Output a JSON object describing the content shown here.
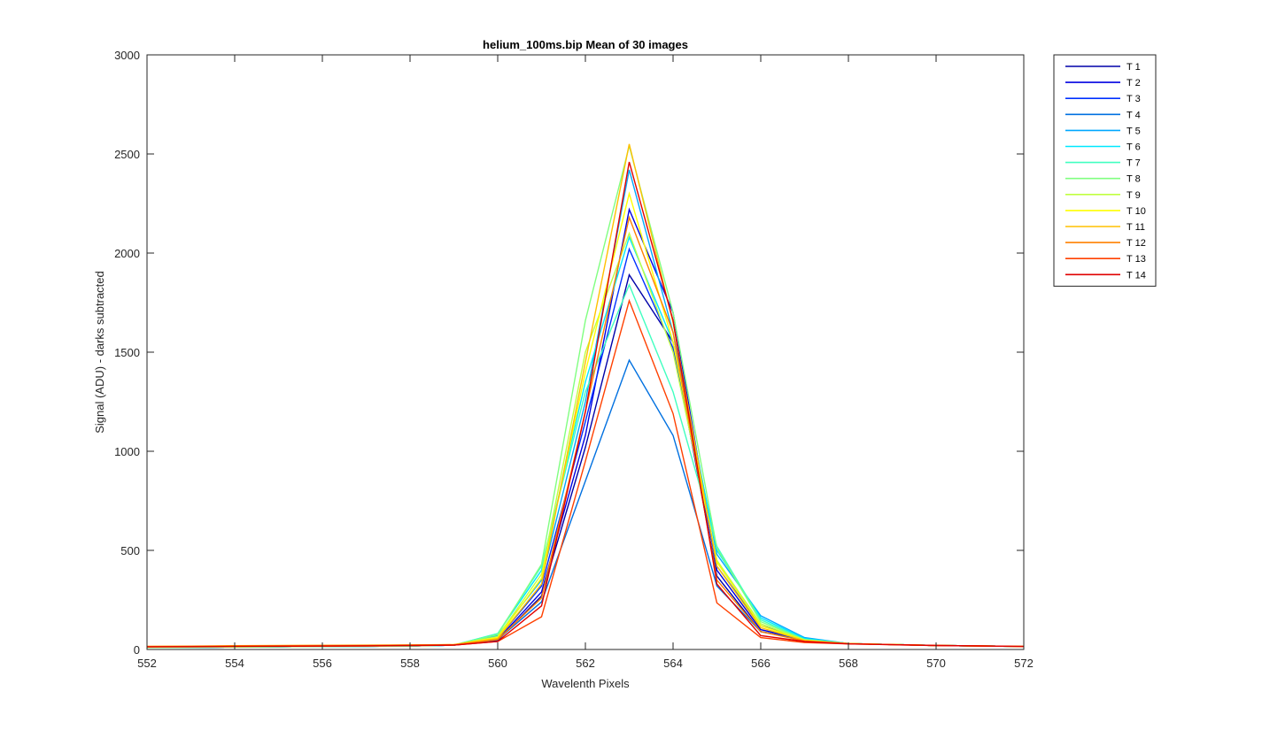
{
  "chart_data": {
    "type": "line",
    "title": "helium_100ms.bip  Mean of 30 images",
    "xlabel": "Wavelenth Pixels",
    "ylabel": "Signal (ADU) - darks subtracted",
    "xlim": [
      552,
      572
    ],
    "ylim": [
      0,
      3000
    ],
    "xticks": [
      552,
      554,
      556,
      558,
      560,
      562,
      564,
      566,
      568,
      570,
      572
    ],
    "yticks": [
      0,
      500,
      1000,
      1500,
      2000,
      2500,
      3000
    ],
    "grid": false,
    "legend_position": "outside-top-right",
    "x": [
      552,
      553,
      554,
      555,
      556,
      557,
      558,
      559,
      560,
      561,
      562,
      563,
      564,
      565,
      566,
      567,
      568,
      569,
      570,
      571,
      572
    ],
    "series": [
      {
        "name": "T 1",
        "color": "#0000a8",
        "values": [
          10,
          11,
          12,
          14,
          15,
          16,
          18,
          22,
          45,
          270,
          1020,
          1890,
          1550,
          370,
          90,
          50,
          30,
          25,
          20,
          18,
          15
        ]
      },
      {
        "name": "T 2",
        "color": "#0000e0",
        "values": [
          10,
          11,
          12,
          14,
          15,
          16,
          18,
          22,
          50,
          290,
          1080,
          2220,
          1700,
          400,
          100,
          50,
          30,
          25,
          20,
          18,
          15
        ]
      },
      {
        "name": "T 3",
        "color": "#0030ff",
        "values": [
          10,
          11,
          12,
          14,
          15,
          16,
          18,
          22,
          55,
          320,
          1150,
          2020,
          1520,
          420,
          120,
          55,
          30,
          25,
          20,
          18,
          15
        ]
      },
      {
        "name": "T 4",
        "color": "#0070e0",
        "values": [
          10,
          11,
          12,
          14,
          15,
          16,
          18,
          22,
          50,
          240,
          850,
          1460,
          1080,
          320,
          90,
          45,
          30,
          25,
          20,
          18,
          15
        ]
      },
      {
        "name": "T 5",
        "color": "#00a8ff",
        "values": [
          10,
          11,
          12,
          14,
          15,
          16,
          18,
          22,
          70,
          350,
          1250,
          2420,
          1600,
          480,
          170,
          60,
          30,
          25,
          20,
          18,
          15
        ]
      },
      {
        "name": "T 6",
        "color": "#00e8ff",
        "values": [
          10,
          11,
          12,
          14,
          15,
          16,
          18,
          22,
          80,
          400,
          1350,
          2080,
          1550,
          500,
          160,
          55,
          30,
          25,
          20,
          18,
          15
        ]
      },
      {
        "name": "T 7",
        "color": "#40ffc0",
        "values": [
          10,
          11,
          12,
          14,
          15,
          16,
          18,
          22,
          80,
          420,
          1300,
          1840,
          1300,
          520,
          150,
          50,
          30,
          25,
          20,
          18,
          15
        ]
      },
      {
        "name": "T 8",
        "color": "#80ff80",
        "values": [
          10,
          11,
          12,
          14,
          15,
          16,
          18,
          22,
          75,
          430,
          1660,
          2540,
          1700,
          510,
          140,
          50,
          30,
          25,
          20,
          18,
          15
        ]
      },
      {
        "name": "T 9",
        "color": "#c0ff40",
        "values": [
          12,
          13,
          14,
          15,
          16,
          17,
          19,
          23,
          65,
          380,
          1500,
          2100,
          1500,
          450,
          130,
          48,
          30,
          25,
          20,
          18,
          15
        ]
      },
      {
        "name": "T 10",
        "color": "#ffff00",
        "values": [
          14,
          15,
          16,
          17,
          18,
          19,
          20,
          24,
          60,
          360,
          1400,
          2300,
          1550,
          440,
          120,
          45,
          30,
          25,
          20,
          18,
          15
        ]
      },
      {
        "name": "T 11",
        "color": "#ffc000",
        "values": [
          16,
          17,
          19,
          20,
          21,
          22,
          23,
          25,
          55,
          330,
          1450,
          2550,
          1650,
          420,
          110,
          45,
          30,
          25,
          20,
          18,
          15
        ]
      },
      {
        "name": "T 12",
        "color": "#ff8000",
        "values": [
          15,
          16,
          18,
          19,
          20,
          21,
          22,
          24,
          50,
          260,
          1200,
          2180,
          1600,
          350,
          90,
          42,
          30,
          25,
          20,
          18,
          15
        ]
      },
      {
        "name": "T 13",
        "color": "#ff4000",
        "values": [
          14,
          15,
          16,
          17,
          18,
          19,
          20,
          22,
          40,
          165,
          950,
          1760,
          1190,
          235,
          60,
          35,
          28,
          24,
          20,
          18,
          15
        ]
      },
      {
        "name": "T 14",
        "color": "#e00000",
        "values": [
          13,
          14,
          15,
          16,
          17,
          18,
          20,
          22,
          40,
          220,
          1200,
          2460,
          1660,
          330,
          70,
          40,
          28,
          24,
          20,
          18,
          15
        ]
      }
    ]
  }
}
